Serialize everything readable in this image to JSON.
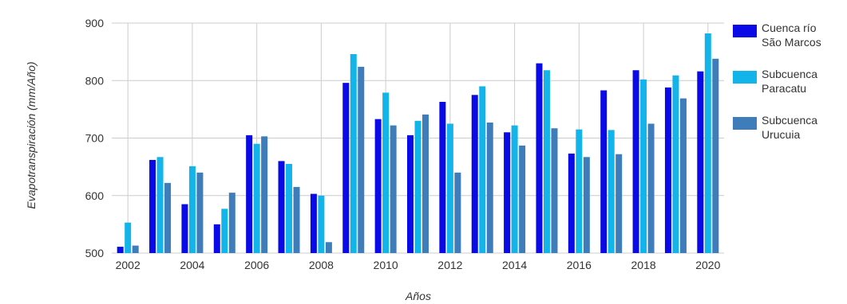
{
  "chart_data": {
    "type": "bar",
    "categories": [
      "2002",
      "2003",
      "2004",
      "2005",
      "2006",
      "2007",
      "2008",
      "2009",
      "2010",
      "2011",
      "2012",
      "2013",
      "2014",
      "2015",
      "2016",
      "2017",
      "2018",
      "2019",
      "2020"
    ],
    "x_tick_labels": [
      "2002",
      "2004",
      "2006",
      "2008",
      "2010",
      "2012",
      "2014",
      "2016",
      "2018",
      "2020"
    ],
    "y_tick_labels": [
      "500",
      "600",
      "700",
      "800",
      "900"
    ],
    "ylim": [
      500,
      900
    ],
    "xlabel": "Años",
    "ylabel": "Evapotranspiración (mm/Año)",
    "grid": true,
    "legend_position": "right",
    "series": [
      {
        "name": "Cuenca río\nSão Marcos",
        "color": "#0a0ae6",
        "values": [
          511,
          662,
          585,
          550,
          705,
          660,
          603,
          796,
          733,
          705,
          763,
          775,
          710,
          830,
          673,
          783,
          818,
          788,
          816
        ]
      },
      {
        "name": "Subcuenca\nParacatu",
        "color": "#12b4ea",
        "values": [
          553,
          667,
          651,
          577,
          690,
          655,
          600,
          846,
          779,
          730,
          725,
          790,
          722,
          818,
          715,
          714,
          802,
          809,
          882
        ]
      },
      {
        "name": "Subcuenca\nUrucuia",
        "color": "#3f7cba",
        "values": [
          513,
          622,
          640,
          605,
          703,
          615,
          519,
          824,
          722,
          741,
          640,
          727,
          687,
          717,
          667,
          672,
          725,
          769,
          838
        ]
      }
    ]
  }
}
